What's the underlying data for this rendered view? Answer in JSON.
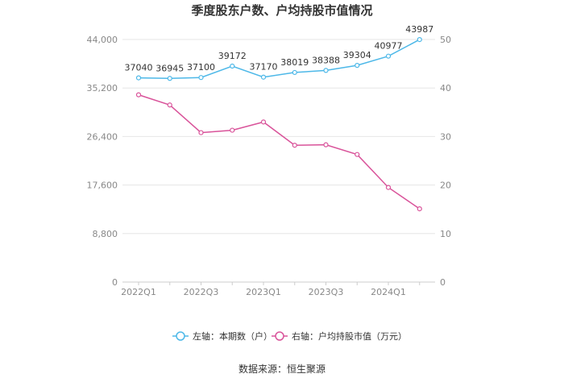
{
  "chart_data": {
    "type": "line",
    "title": "季度股东户数、户均持股市值情况",
    "categories": [
      "2022Q1",
      "2022Q2",
      "2022Q3",
      "2022Q4",
      "2023Q1",
      "2023Q2",
      "2023Q3",
      "2023Q4",
      "2024Q1",
      "2024Q2"
    ],
    "x_tick_labels": [
      "2022Q1",
      "2022Q3",
      "2023Q1",
      "2023Q3",
      "2024Q1"
    ],
    "series": [
      {
        "name": "左轴：本期数（户）",
        "axis": "left",
        "color": "#4db8e8",
        "values": [
          37040,
          36945,
          37100,
          39172,
          37170,
          38019,
          38388,
          39304,
          40977,
          43987
        ],
        "data_labels": [
          "37040",
          "36945",
          "37100",
          "39172",
          "37170",
          "38019",
          "38388",
          "39304",
          "40977",
          "43987"
        ]
      },
      {
        "name": "右轴：户均持股市值（万元）",
        "axis": "right",
        "color": "#d9539a",
        "values": [
          38.6,
          36.5,
          30.8,
          31.3,
          33.0,
          28.2,
          28.3,
          26.3,
          19.5,
          15.1
        ]
      }
    ],
    "y_left": {
      "min": 0,
      "max": 44000,
      "ticks": [
        0,
        8800,
        17600,
        26400,
        35200,
        44000
      ],
      "tick_labels": [
        "0",
        "8,800",
        "17,600",
        "26,400",
        "35,200",
        "44,000"
      ]
    },
    "y_right": {
      "min": 0,
      "max": 50,
      "ticks": [
        0,
        10,
        20,
        30,
        40,
        50
      ],
      "tick_labels": [
        "0",
        "10",
        "20",
        "30",
        "40",
        "50"
      ]
    },
    "grid": true,
    "legend_position": "bottom"
  },
  "footer": {
    "source": "数据来源：恒生聚源"
  }
}
